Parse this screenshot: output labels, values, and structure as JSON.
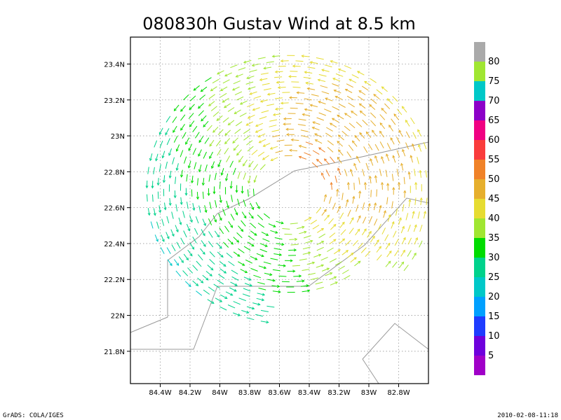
{
  "chart_data": {
    "type": "vector_field",
    "title": "080830h Gustav Wind at 8.5 km",
    "xlabel": "",
    "ylabel": "",
    "x_range": [
      -84.6,
      -82.6
    ],
    "y_range": [
      21.62,
      23.55
    ],
    "grid": true,
    "x_ticks": [
      {
        "value": -84.4,
        "label": "84.4W"
      },
      {
        "value": -84.2,
        "label": "84.2W"
      },
      {
        "value": -84.0,
        "label": "84W"
      },
      {
        "value": -83.8,
        "label": "83.8W"
      },
      {
        "value": -83.6,
        "label": "83.6W"
      },
      {
        "value": -83.4,
        "label": "83.4W"
      },
      {
        "value": -83.2,
        "label": "83.2W"
      },
      {
        "value": -83.0,
        "label": "83W"
      },
      {
        "value": -82.8,
        "label": "82.8W"
      }
    ],
    "y_ticks": [
      {
        "value": 21.8,
        "label": "21.8N"
      },
      {
        "value": 22.0,
        "label": "22N"
      },
      {
        "value": 22.2,
        "label": "22.2N"
      },
      {
        "value": 22.4,
        "label": "22.4N"
      },
      {
        "value": 22.6,
        "label": "22.6N"
      },
      {
        "value": 22.8,
        "label": "22.8N"
      },
      {
        "value": 23.0,
        "label": "23N"
      },
      {
        "value": 23.2,
        "label": "23.2N"
      },
      {
        "value": 23.4,
        "label": "23.4N"
      }
    ],
    "storm_center": {
      "lon": -83.53,
      "lat": 22.7
    },
    "circulation": "counterclockwise",
    "colorbar": {
      "labels": [
        "5",
        "10",
        "15",
        "20",
        "25",
        "30",
        "35",
        "40",
        "45",
        "50",
        "55",
        "60",
        "65",
        "70",
        "75",
        "80"
      ],
      "colors": [
        "#a000c8",
        "#6e00dc",
        "#1e3cff",
        "#00a0ff",
        "#00c8c8",
        "#00d28c",
        "#00dc00",
        "#a0e632",
        "#e6dc32",
        "#e6af2d",
        "#f08228",
        "#fa3c3c",
        "#f00082",
        "#8c00c8",
        "#00c8c8",
        "#a0e632",
        "#aaaaaa"
      ]
    }
  },
  "footer": {
    "left": "GrADS: COLA/IGES",
    "right": "2010-02-08-11:18"
  }
}
